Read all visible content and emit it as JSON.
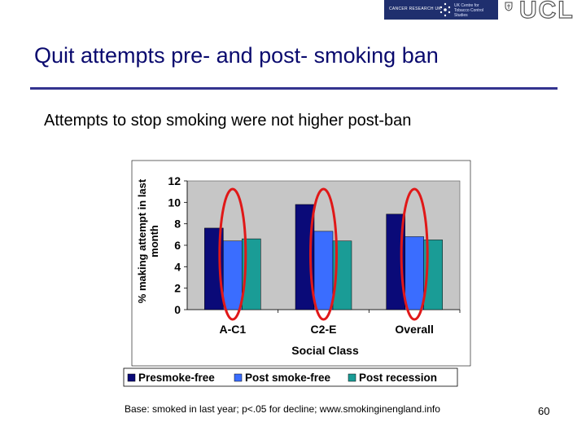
{
  "header": {
    "logo_left_text": "CANCER RESEARCH UK",
    "logo_right_text_1": "UK Centre for",
    "logo_right_text_2": "Tobacco Control Studies",
    "ucl_text": "UCL"
  },
  "slide": {
    "title": "Quit attempts pre- and post- smoking ban",
    "subtitle": "Attempts to stop smoking were not higher post-ban",
    "footnote": "Base: smoked in last year; p<.05 for decline; www.smokinginengland.info",
    "page_number": "60"
  },
  "colors": {
    "title": "#0a0a6e",
    "rule": "#33338f",
    "series": [
      "#0a0a78",
      "#3a6dff",
      "#1a9c96"
    ],
    "highlight_ellipse": "#e01818"
  },
  "chart_data": {
    "type": "bar",
    "categories": [
      "A-C1",
      "C2-E",
      "Overall"
    ],
    "series": [
      {
        "name": "Presmoke-free",
        "values": [
          7.6,
          9.8,
          8.9
        ]
      },
      {
        "name": "Post smoke-free",
        "values": [
          6.4,
          7.3,
          6.8
        ]
      },
      {
        "name": "Post recession",
        "values": [
          6.6,
          6.4,
          6.5
        ]
      }
    ],
    "xlabel": "Social Class",
    "ylabel": "% making attempt in last month",
    "ylim": [
      0,
      12
    ],
    "yticks": [
      "0",
      "2",
      "4",
      "6",
      "8",
      "10",
      "12"
    ],
    "grid": false,
    "legend_position": "bottom",
    "annotations": "red ellipses around the Post smoke-free bars"
  }
}
